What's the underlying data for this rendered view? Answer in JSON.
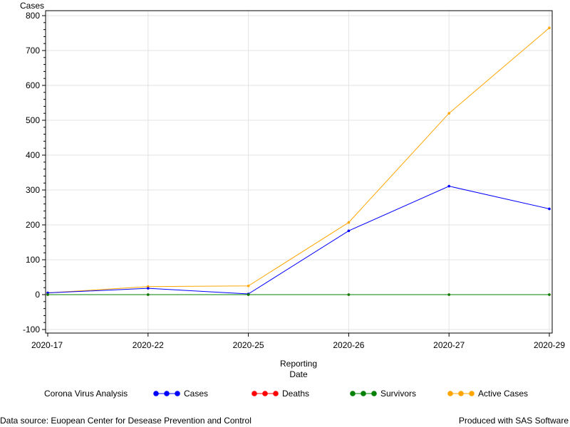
{
  "chart_data": {
    "type": "line",
    "ylabel": "Cases",
    "xlabel": [
      "Reporting",
      "Date"
    ],
    "categories": [
      "2020-17",
      "2020-22",
      "2020-25",
      "2020-26",
      "2020-27",
      "2020-29"
    ],
    "ylim": [
      -100,
      800
    ],
    "yticks": [
      -100,
      0,
      100,
      200,
      300,
      400,
      500,
      600,
      700,
      800
    ],
    "grid": true,
    "legend_title": "Corona Virus Analysis",
    "legend_position": "bottom",
    "series": [
      {
        "name": "Cases",
        "color": "#0000ff",
        "values": [
          5,
          18,
          2,
          183,
          311,
          246
        ]
      },
      {
        "name": "Deaths",
        "color": "#ff0000",
        "values": [
          0,
          0,
          0,
          0,
          0,
          0
        ]
      },
      {
        "name": "Survivors",
        "color": "#008000",
        "values": [
          0,
          0,
          0,
          0,
          0,
          0
        ]
      },
      {
        "name": "Active Cases",
        "color": "#ffa500",
        "values": [
          5,
          23,
          25,
          207,
          520,
          765
        ]
      }
    ]
  },
  "footer": {
    "source": "Data source: Euopean Center for Desease Prevention and Control",
    "produced": "Produced with SAS Software"
  }
}
